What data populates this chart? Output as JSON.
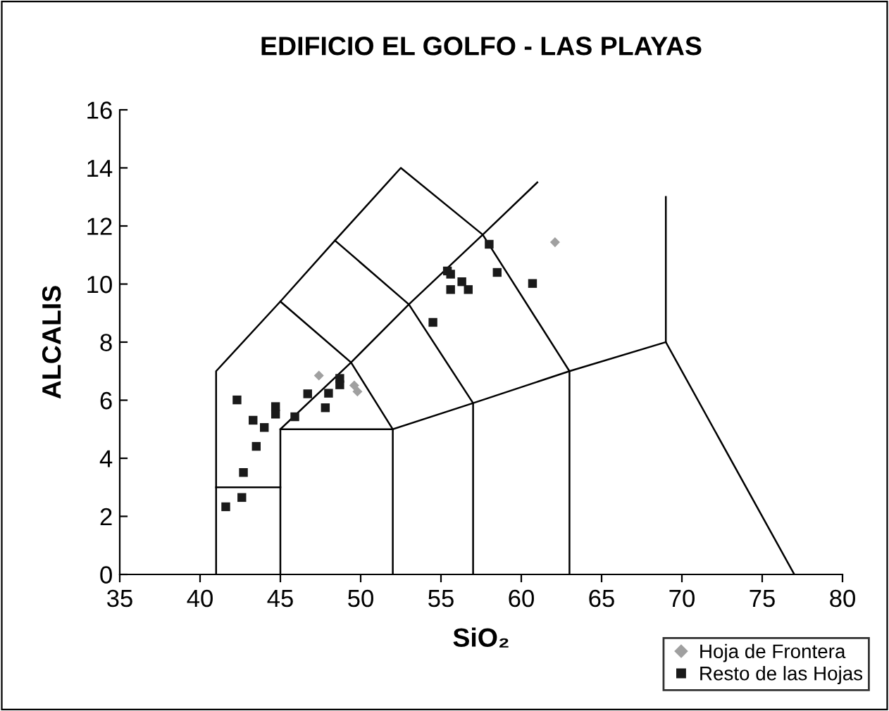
{
  "chart_data": {
    "type": "scatter",
    "title": "EDIFICIO EL GOLFO - LAS PLAYAS",
    "xlabel": "SiO₂",
    "ylabel": "ALCALIS",
    "xlim": [
      35,
      80
    ],
    "xticks": [
      35,
      40,
      45,
      50,
      55,
      60,
      65,
      70,
      75,
      80
    ],
    "ylim": [
      0,
      16
    ],
    "yticks": [
      0,
      2,
      4,
      6,
      8,
      10,
      12,
      14,
      16
    ],
    "grid": false,
    "legend": "bottom right",
    "series": [
      {
        "name": "Hoja de Frontera",
        "color": "#a0a0a0",
        "marker": "diamond",
        "x": [
          47.4,
          49.6,
          49.8,
          62.1
        ],
        "values": [
          6.85,
          6.51,
          6.3,
          11.44
        ]
      },
      {
        "name": "Resto de las Hojas",
        "color": "#1a1a1a",
        "marker": "square",
        "x": [
          42.3,
          43.3,
          44.0,
          43.5,
          42.7,
          42.6,
          41.6,
          44.7,
          44.7,
          45.9,
          46.7,
          48.0,
          47.8,
          48.7,
          48.7,
          54.5,
          55.4,
          55.6,
          55.6,
          56.3,
          56.7,
          58.0,
          58.5,
          60.7
        ],
        "values": [
          6.01,
          5.31,
          5.06,
          4.41,
          3.51,
          2.65,
          2.33,
          5.78,
          5.52,
          5.43,
          6.22,
          6.24,
          5.74,
          6.75,
          6.53,
          8.68,
          10.45,
          10.34,
          9.81,
          10.08,
          9.81,
          11.37,
          10.4,
          10.02
        ]
      },
      {
        "type": "line",
        "color": "#000000",
        "marker": "none",
        "x": [
          41,
          41,
          45,
          48.4,
          52.5,
          57.6,
          63,
          63
        ],
        "values": [
          0,
          7,
          9.4,
          11.5,
          14,
          11.7,
          7,
          0
        ]
      },
      {
        "type": "line",
        "color": "#000000",
        "marker": "none",
        "x": [
          41,
          45
        ],
        "values": [
          3,
          3
        ]
      },
      {
        "type": "line",
        "color": "#000000",
        "marker": "none",
        "x": [
          45,
          45,
          52,
          52
        ],
        "values": [
          0,
          5,
          5,
          0
        ]
      },
      {
        "type": "line",
        "color": "#000000",
        "marker": "none",
        "x": [
          45,
          49.4,
          53,
          57.6,
          61
        ],
        "values": [
          5,
          7.3,
          9.3,
          11.7,
          13.5
        ]
      },
      {
        "type": "line",
        "color": "#000000",
        "marker": "none",
        "x": [
          45,
          49.4,
          52
        ],
        "values": [
          9.4,
          7.3,
          5
        ]
      },
      {
        "type": "line",
        "color": "#000000",
        "marker": "none",
        "x": [
          48.4,
          53,
          57,
          57
        ],
        "values": [
          11.5,
          9.3,
          5.9,
          0
        ]
      },
      {
        "type": "line",
        "color": "#000000",
        "marker": "none",
        "x": [
          52,
          57,
          63,
          69
        ],
        "values": [
          5,
          5.9,
          7,
          8
        ]
      },
      {
        "type": "line",
        "color": "#000000",
        "marker": "none",
        "x": [
          69,
          69,
          77
        ],
        "values": [
          13,
          8,
          0
        ]
      }
    ]
  }
}
